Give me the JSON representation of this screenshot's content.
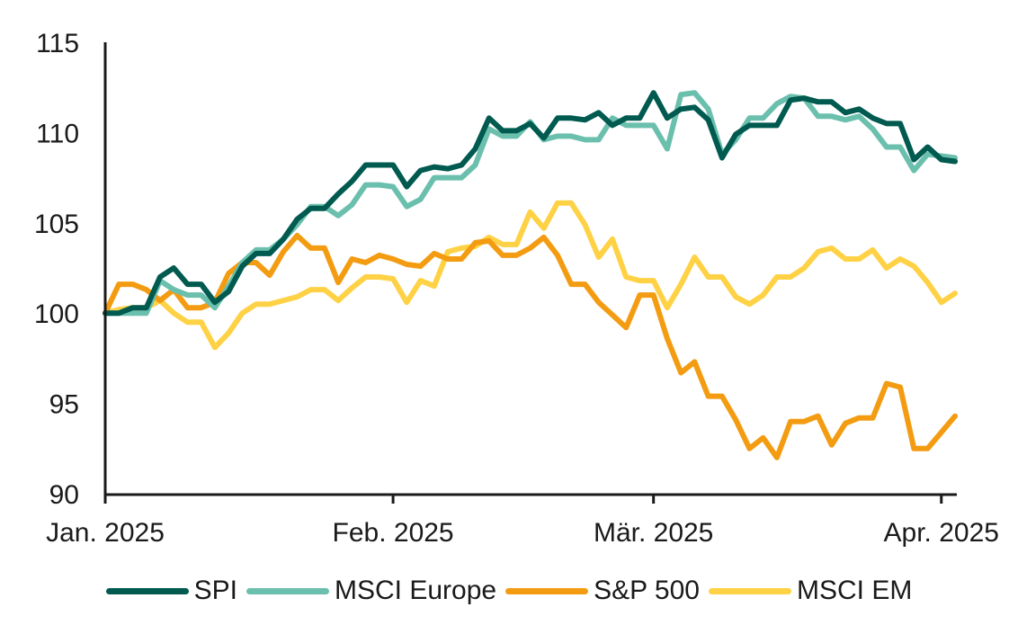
{
  "chart_data": {
    "type": "line",
    "title": "",
    "xlabel": "",
    "ylabel": "",
    "ylim": [
      90,
      115
    ],
    "yticks": [
      90,
      95,
      100,
      105,
      110,
      115
    ],
    "x_unit": "trading-day index (0 = start of Jan. 2025)",
    "xlim": [
      0,
      62
    ],
    "xticks": [
      {
        "label": "Jan. 2025",
        "x": 0
      },
      {
        "label": "Feb. 2025",
        "x": 21
      },
      {
        "label": "Mär. 2025",
        "x": 40
      },
      {
        "label": "Apr. 2025",
        "x": 61
      }
    ],
    "grid": false,
    "legend_position": "bottom",
    "series": [
      {
        "name": "SPI",
        "color": "#005a4f",
        "x": [
          0,
          1,
          2,
          3,
          4,
          5,
          6,
          7,
          8,
          9,
          10,
          11,
          12,
          13,
          14,
          15,
          16,
          17,
          18,
          19,
          20,
          21,
          22,
          23,
          24,
          25,
          26,
          27,
          28,
          29,
          30,
          31,
          32,
          33,
          34,
          35,
          36,
          37,
          38,
          39,
          40,
          41,
          42,
          43,
          44,
          45,
          46,
          47,
          48,
          49,
          50,
          51,
          52,
          53,
          54,
          55,
          56,
          57,
          58,
          59,
          60,
          61,
          62
        ],
        "values": [
          100,
          100,
          100.3,
          100.3,
          102,
          102.5,
          101.6,
          101.6,
          100.6,
          101.2,
          102.6,
          103.3,
          103.3,
          104.1,
          105.2,
          105.8,
          105.8,
          106.6,
          107.3,
          108.2,
          108.2,
          108.2,
          107,
          107.9,
          108.1,
          108,
          108.2,
          109.1,
          110.8,
          110.1,
          110.1,
          110.5,
          109.7,
          110.8,
          110.8,
          110.7,
          111.1,
          110.4,
          110.8,
          110.8,
          112.2,
          110.8,
          111.3,
          111.4,
          110.7,
          108.6,
          109.9,
          110.4,
          110.4,
          110.4,
          111.8,
          111.9,
          111.7,
          111.7,
          111.1,
          111.3,
          110.8,
          110.5,
          110.5,
          108.5,
          109.2,
          108.5,
          108.4
        ]
      },
      {
        "name": "MSCI Europe",
        "color": "#6bbfad",
        "x": [
          0,
          1,
          2,
          3,
          4,
          5,
          6,
          7,
          8,
          9,
          10,
          11,
          12,
          13,
          14,
          15,
          16,
          17,
          18,
          19,
          20,
          21,
          22,
          23,
          24,
          25,
          26,
          27,
          28,
          29,
          30,
          31,
          32,
          33,
          34,
          35,
          36,
          37,
          38,
          39,
          40,
          41,
          42,
          43,
          44,
          45,
          46,
          47,
          48,
          49,
          50,
          51,
          52,
          53,
          54,
          55,
          56,
          57,
          58,
          59,
          60,
          61,
          62
        ],
        "values": [
          100,
          100,
          100,
          100,
          101.8,
          101.3,
          101,
          101,
          100.3,
          101.5,
          102.8,
          103.5,
          103.5,
          104.1,
          104.9,
          105.9,
          105.9,
          105.4,
          106,
          107.1,
          107.1,
          107,
          105.9,
          106.3,
          107.5,
          107.5,
          107.5,
          108.2,
          110.2,
          109.8,
          109.8,
          110.6,
          109.6,
          109.8,
          109.8,
          109.6,
          109.6,
          110.8,
          110.4,
          110.4,
          110.4,
          109.1,
          112.1,
          112.2,
          111.3,
          108.8,
          109.6,
          110.8,
          110.8,
          111.6,
          112,
          111.9,
          110.9,
          110.9,
          110.7,
          110.9,
          110.2,
          109.2,
          109.2,
          107.9,
          108.8,
          108.7,
          108.6
        ]
      },
      {
        "name": "S&P 500",
        "color": "#f39c12",
        "x": [
          0,
          1,
          2,
          3,
          4,
          5,
          6,
          7,
          8,
          9,
          10,
          11,
          12,
          13,
          14,
          15,
          16,
          17,
          18,
          19,
          20,
          21,
          22,
          23,
          24,
          25,
          26,
          27,
          28,
          29,
          30,
          31,
          32,
          33,
          34,
          35,
          36,
          37,
          38,
          39,
          40,
          41,
          42,
          43,
          44,
          45,
          46,
          47,
          48,
          49,
          50,
          51,
          52,
          53,
          54,
          55,
          56,
          57,
          58,
          59,
          60,
          61,
          62
        ],
        "values": [
          100,
          101.6,
          101.6,
          101.3,
          100.7,
          101.3,
          100.3,
          100.3,
          100.6,
          102.2,
          102.8,
          102.8,
          102.1,
          103.4,
          104.3,
          103.6,
          103.6,
          101.7,
          103,
          102.8,
          103.2,
          103,
          102.7,
          102.6,
          103.3,
          103,
          103,
          103.9,
          104,
          103.2,
          103.2,
          103.6,
          104.2,
          103.2,
          101.6,
          101.6,
          100.6,
          99.9,
          99.2,
          101,
          101,
          98.6,
          96.7,
          97.3,
          95.4,
          95.4,
          94.1,
          92.5,
          93.1,
          92,
          94,
          94,
          94.3,
          92.7,
          93.9,
          94.2,
          94.2,
          96.1,
          95.9,
          92.5,
          92.5,
          93.4,
          94.3
        ]
      },
      {
        "name": "MSCI EM",
        "color": "#ffd145",
        "x": [
          0,
          1,
          2,
          3,
          4,
          5,
          6,
          7,
          8,
          9,
          10,
          11,
          12,
          13,
          14,
          15,
          16,
          17,
          18,
          19,
          20,
          21,
          22,
          23,
          24,
          25,
          26,
          27,
          28,
          29,
          30,
          31,
          32,
          33,
          34,
          35,
          36,
          37,
          38,
          39,
          40,
          41,
          42,
          43,
          44,
          45,
          46,
          47,
          48,
          49,
          50,
          51,
          52,
          53,
          54,
          55,
          56,
          57,
          58,
          59,
          60,
          61,
          62
        ],
        "values": [
          100,
          100.2,
          100.3,
          100.3,
          100.7,
          100,
          99.5,
          99.5,
          98.1,
          98.9,
          100,
          100.5,
          100.5,
          100.7,
          100.9,
          101.3,
          101.3,
          100.7,
          101.4,
          102,
          102,
          101.9,
          100.6,
          101.8,
          101.5,
          103.4,
          103.6,
          103.7,
          104.2,
          103.8,
          103.8,
          105.6,
          104.7,
          106.1,
          106.1,
          104.9,
          103.1,
          104.1,
          102,
          101.8,
          101.8,
          100.3,
          101.6,
          103.1,
          102,
          102,
          100.9,
          100.5,
          101,
          102,
          102,
          102.5,
          103.4,
          103.6,
          103,
          103,
          103.5,
          102.5,
          103,
          102.6,
          101.7,
          100.6,
          101.1
        ]
      }
    ]
  },
  "legend": [
    {
      "label": "SPI",
      "color": "#005a4f"
    },
    {
      "label": "MSCI Europe",
      "color": "#6bbfad"
    },
    {
      "label": "S&P 500",
      "color": "#f39c12"
    },
    {
      "label": "MSCI EM",
      "color": "#ffd145"
    }
  ]
}
